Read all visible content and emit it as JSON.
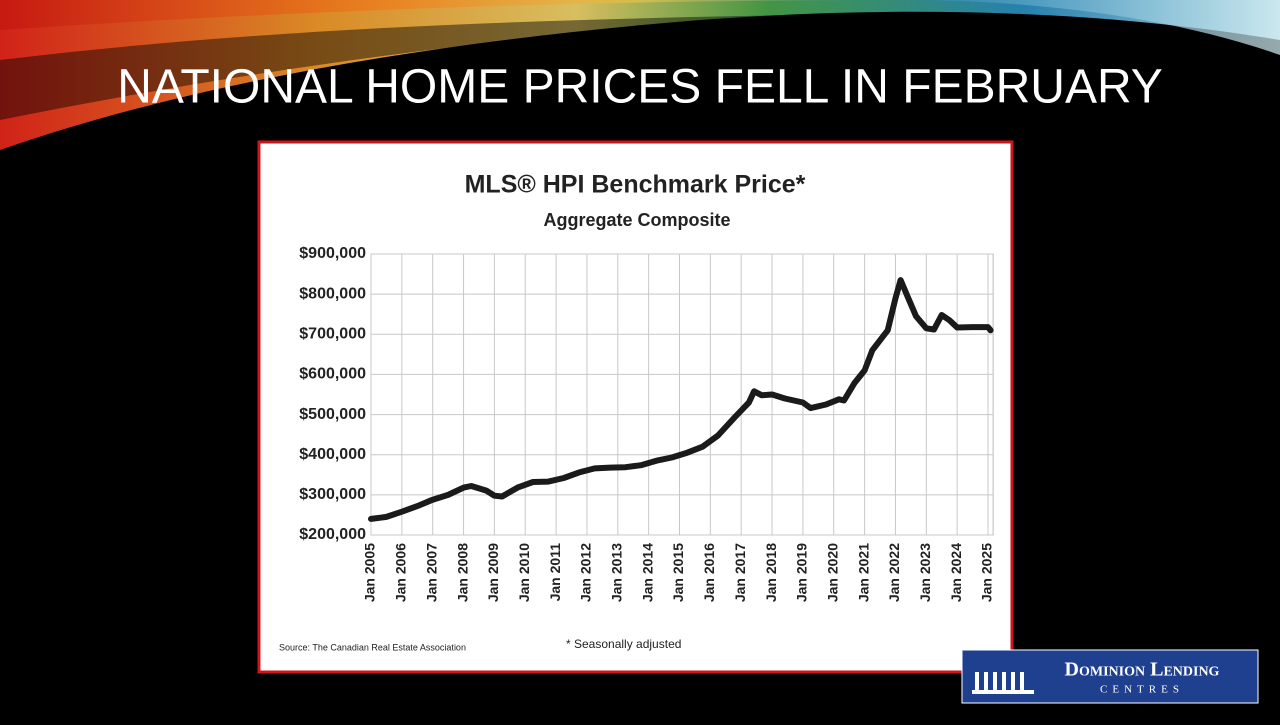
{
  "slide": {
    "title": "NATIONAL HOME PRICES FELL IN FEBRUARY"
  },
  "chart_data": {
    "type": "line",
    "title": "MLS® HPI Benchmark Price*",
    "subtitle": "Aggregate Composite",
    "source": "Source: The Canadian Real Estate Association",
    "note": "* Seasonally adjusted",
    "color": "#1a1a1a",
    "grid": true,
    "x": [
      "2005-01",
      "2005-07",
      "2006-01",
      "2006-07",
      "2007-01",
      "2007-07",
      "2008-01",
      "2008-04",
      "2008-10",
      "2009-01",
      "2009-04",
      "2009-10",
      "2010-04",
      "2010-10",
      "2011-04",
      "2011-10",
      "2012-04",
      "2012-10",
      "2013-04",
      "2013-10",
      "2014-04",
      "2014-10",
      "2015-04",
      "2015-10",
      "2016-04",
      "2016-10",
      "2017-01",
      "2017-04",
      "2017-06",
      "2017-09",
      "2018-01",
      "2018-06",
      "2019-01",
      "2019-04",
      "2019-10",
      "2020-03",
      "2020-05",
      "2020-09",
      "2021-01",
      "2021-04",
      "2021-10",
      "2022-01",
      "2022-03",
      "2022-06",
      "2022-09",
      "2023-01",
      "2023-04",
      "2023-07",
      "2023-10",
      "2024-01",
      "2024-07",
      "2025-01",
      "2025-02"
    ],
    "values": [
      240000,
      245000,
      258000,
      272000,
      288000,
      300000,
      318000,
      322000,
      310000,
      298000,
      296000,
      318000,
      332000,
      333000,
      342000,
      356000,
      366000,
      368000,
      369000,
      374000,
      385000,
      393000,
      405000,
      420000,
      448000,
      490000,
      510000,
      530000,
      558000,
      548000,
      550000,
      540000,
      530000,
      516000,
      525000,
      538000,
      535000,
      578000,
      610000,
      660000,
      710000,
      790000,
      835000,
      790000,
      745000,
      715000,
      712000,
      748000,
      735000,
      717000,
      718000,
      718000,
      710000
    ],
    "xlim": [
      "2005-01",
      "2025-03"
    ],
    "xticks": [
      {
        "value": "2005-01",
        "label": "Jan 2005"
      },
      {
        "value": "2006-01",
        "label": "Jan 2006"
      },
      {
        "value": "2007-01",
        "label": "Jan 2007"
      },
      {
        "value": "2008-01",
        "label": "Jan 2008"
      },
      {
        "value": "2009-01",
        "label": "Jan 2009"
      },
      {
        "value": "2010-01",
        "label": "Jan 2010"
      },
      {
        "value": "2011-01",
        "label": "Jan 2011"
      },
      {
        "value": "2012-01",
        "label": "Jan 2012"
      },
      {
        "value": "2013-01",
        "label": "Jan 2013"
      },
      {
        "value": "2014-01",
        "label": "Jan 2014"
      },
      {
        "value": "2015-01",
        "label": "Jan 2015"
      },
      {
        "value": "2016-01",
        "label": "Jan 2016"
      },
      {
        "value": "2017-01",
        "label": "Jan 2017"
      },
      {
        "value": "2018-01",
        "label": "Jan 2018"
      },
      {
        "value": "2019-01",
        "label": "Jan 2019"
      },
      {
        "value": "2020-01",
        "label": "Jan 2020"
      },
      {
        "value": "2021-01",
        "label": "Jan 2021"
      },
      {
        "value": "2022-01",
        "label": "Jan 2022"
      },
      {
        "value": "2023-01",
        "label": "Jan 2023"
      },
      {
        "value": "2024-01",
        "label": "Jan 2024"
      },
      {
        "value": "2025-01",
        "label": "Jan 2025"
      }
    ],
    "ylim": [
      200000,
      900000
    ],
    "yticks": [
      {
        "value": 200000,
        "label": "$200,000"
      },
      {
        "value": 300000,
        "label": "$300,000"
      },
      {
        "value": 400000,
        "label": "$400,000"
      },
      {
        "value": 500000,
        "label": "$500,000"
      },
      {
        "value": 600000,
        "label": "$600,000"
      },
      {
        "value": 700000,
        "label": "$700,000"
      },
      {
        "value": 800000,
        "label": "$800,000"
      },
      {
        "value": 900000,
        "label": "$900,000"
      }
    ]
  },
  "logo": {
    "name": "Dominion Lending",
    "sub": "CENTRES"
  }
}
